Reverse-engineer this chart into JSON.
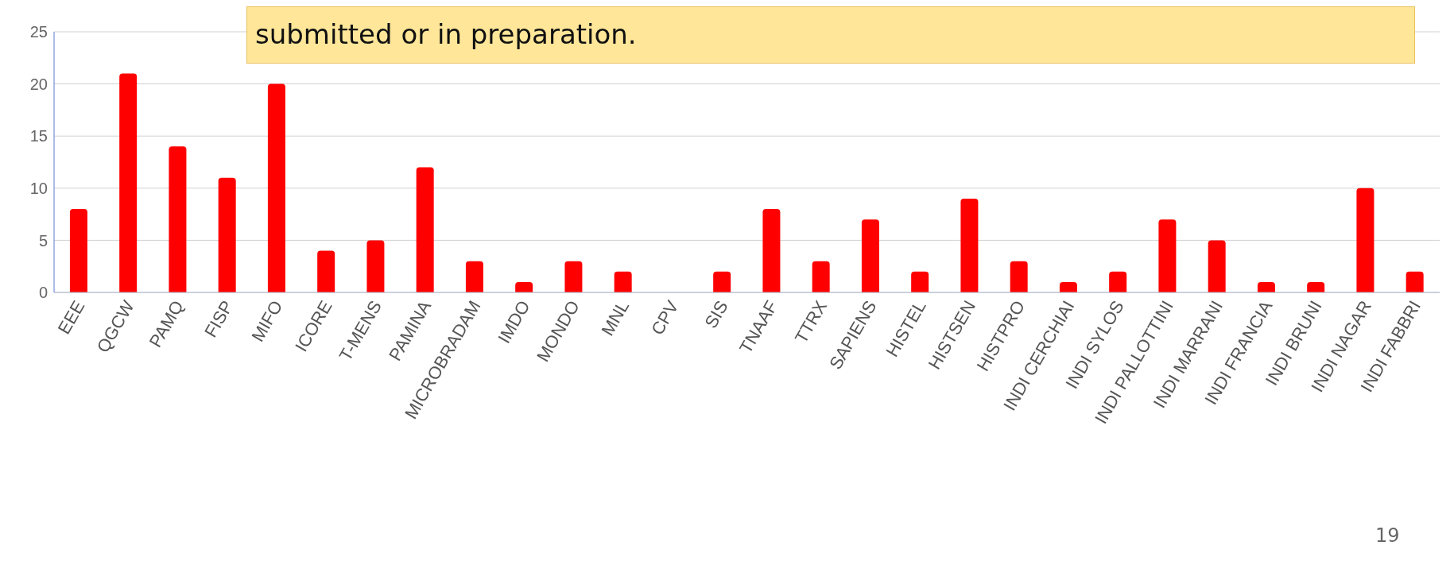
{
  "chart_data": {
    "type": "bar",
    "categories": [
      "EEE",
      "QGCW",
      "PAMQ",
      "FISP",
      "MIFO",
      "ICORE",
      "T-MENS",
      "PAMINA",
      "MICROBRADAM",
      "IMDO",
      "MONDO",
      "MNL",
      "CPV",
      "SIS",
      "TNAAF",
      "TTRX",
      "SAPIENS",
      "HISTEL",
      "HISTSEN",
      "HISTPRO",
      "INDI CERCHIAI",
      "INDI SYLOS",
      "INDI PALLOTTINI",
      "INDI MARRANI",
      "INDI FRANCIA",
      "INDI BRUNI",
      "INDI NAGAR",
      "INDI FABBRI"
    ],
    "values": [
      8,
      21,
      14,
      11,
      20,
      4,
      5,
      12,
      3,
      1,
      3,
      2,
      0,
      2,
      8,
      3,
      7,
      2,
      9,
      3,
      1,
      2,
      7,
      5,
      1,
      1,
      10,
      2
    ],
    "color": "#ff0000",
    "ylim": [
      0,
      25
    ],
    "yticks": [
      0,
      5,
      10,
      15,
      20,
      25
    ],
    "grid": "y",
    "annotations": [
      "submitted or in preparation.",
      "19"
    ]
  }
}
